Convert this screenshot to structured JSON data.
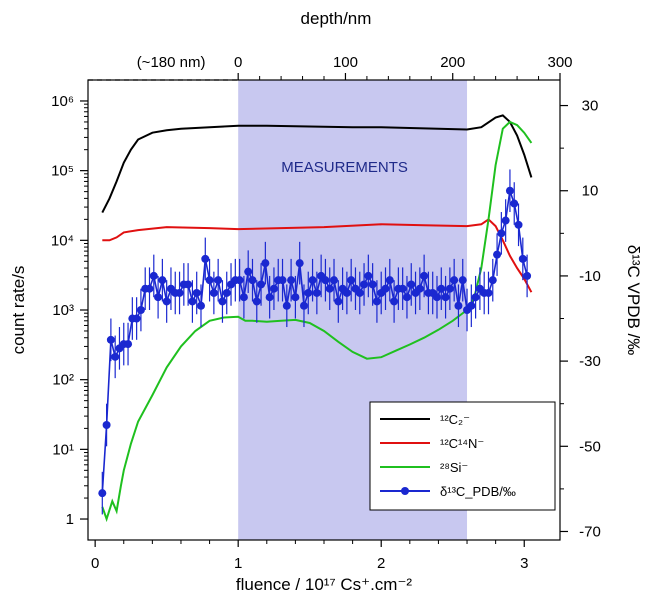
{
  "chart_data": {
    "type": "line",
    "title": "",
    "top_axis": {
      "label": "depth/nm",
      "ticks": [
        0,
        100,
        200,
        300
      ],
      "annotation": "(~180 nm)"
    },
    "xlabel": "fluence / 10¹⁷ Cs⁺.cm⁻²",
    "xlim": [
      -0.05,
      3.25
    ],
    "x_ticks": [
      0,
      1,
      2,
      3
    ],
    "ylabel_left": "count rate/s",
    "y_left_scale": "log",
    "y_left_range": [
      0.5,
      2000000
    ],
    "y_left_ticks": [
      {
        "value": 1,
        "label": "1"
      },
      {
        "value": 10,
        "label": "10¹"
      },
      {
        "value": 100,
        "label": "10²"
      },
      {
        "value": 1000,
        "label": "10³"
      },
      {
        "value": 10000,
        "label": "10⁴"
      },
      {
        "value": 100000,
        "label": "10⁵"
      },
      {
        "value": 1000000,
        "label": "10⁶"
      }
    ],
    "ylabel_right": "δ¹³C VPDB /‰",
    "y_right_range": [
      -72,
      36
    ],
    "y_right_ticks": [
      30,
      10,
      -10,
      -30,
      -50,
      -70
    ],
    "shaded_region": {
      "x_start": 1.0,
      "x_end": 2.6,
      "label": "MEASUREMENTS",
      "color": "#c8c8f0"
    },
    "legend_position": "bottom-right",
    "series": [
      {
        "name": "¹²C₂⁻",
        "axis": "left",
        "color": "#000000",
        "style": "line",
        "x": [
          0.05,
          0.1,
          0.15,
          0.2,
          0.25,
          0.3,
          0.4,
          0.5,
          0.6,
          0.8,
          1.0,
          1.2,
          1.5,
          1.8,
          2.0,
          2.2,
          2.4,
          2.6,
          2.7,
          2.8,
          2.85,
          2.9,
          2.95,
          3.0,
          3.05
        ],
        "y": [
          25000,
          40000,
          70000,
          130000,
          200000,
          280000,
          350000,
          380000,
          400000,
          420000,
          440000,
          440000,
          430000,
          420000,
          420000,
          410000,
          400000,
          390000,
          420000,
          580000,
          620000,
          500000,
          320000,
          170000,
          80000
        ]
      },
      {
        "name": "¹²C¹⁴N⁻",
        "axis": "left",
        "color": "#e01010",
        "style": "line",
        "x": [
          0.05,
          0.1,
          0.15,
          0.2,
          0.3,
          0.5,
          0.8,
          1.0,
          1.3,
          1.6,
          2.0,
          2.3,
          2.6,
          2.7,
          2.75,
          2.8,
          2.85,
          2.9,
          2.95,
          3.0,
          3.05
        ],
        "y": [
          10000,
          10000,
          11000,
          13000,
          14000,
          15500,
          15000,
          14500,
          15000,
          15500,
          17000,
          16500,
          16000,
          17000,
          20000,
          16000,
          10000,
          6000,
          4000,
          2800,
          1800
        ]
      },
      {
        "name": "²⁸Si⁻",
        "axis": "left",
        "color": "#1fc01f",
        "style": "line",
        "x": [
          0.05,
          0.08,
          0.12,
          0.15,
          0.18,
          0.2,
          0.25,
          0.3,
          0.4,
          0.5,
          0.6,
          0.7,
          0.8,
          0.9,
          1.0,
          1.05,
          1.1,
          1.2,
          1.3,
          1.4,
          1.5,
          1.6,
          1.7,
          1.8,
          1.9,
          2.0,
          2.1,
          2.2,
          2.3,
          2.4,
          2.5,
          2.6,
          2.65,
          2.7,
          2.75,
          2.8,
          2.85,
          2.9,
          2.95,
          3.0,
          3.05
        ],
        "y": [
          1.5,
          1.0,
          1.8,
          1.3,
          3,
          5,
          12,
          25,
          60,
          150,
          300,
          500,
          700,
          780,
          800,
          700,
          700,
          680,
          700,
          720,
          650,
          500,
          350,
          250,
          200,
          210,
          260,
          320,
          400,
          520,
          700,
          1000,
          1500,
          4000,
          20000,
          120000,
          400000,
          500000,
          450000,
          350000,
          250000
        ]
      },
      {
        "name": "δ¹³C_PDB/‰",
        "axis": "right",
        "color": "#1a28d0",
        "style": "markers+line+errorbars",
        "x": [
          0.05,
          0.08,
          0.11,
          0.14,
          0.17,
          0.2,
          0.23,
          0.26,
          0.29,
          0.32,
          0.35,
          0.38,
          0.41,
          0.44,
          0.47,
          0.5,
          0.53,
          0.56,
          0.59,
          0.62,
          0.65,
          0.68,
          0.71,
          0.74,
          0.77,
          0.8,
          0.83,
          0.86,
          0.89,
          0.92,
          0.95,
          0.98,
          1.01,
          1.04,
          1.07,
          1.1,
          1.13,
          1.16,
          1.19,
          1.22,
          1.25,
          1.28,
          1.31,
          1.34,
          1.37,
          1.4,
          1.43,
          1.46,
          1.49,
          1.52,
          1.55,
          1.58,
          1.61,
          1.64,
          1.67,
          1.7,
          1.73,
          1.76,
          1.79,
          1.82,
          1.85,
          1.88,
          1.91,
          1.94,
          1.97,
          2.0,
          2.03,
          2.06,
          2.09,
          2.12,
          2.15,
          2.18,
          2.21,
          2.24,
          2.27,
          2.3,
          2.33,
          2.36,
          2.39,
          2.42,
          2.45,
          2.48,
          2.51,
          2.54,
          2.57,
          2.6,
          2.63,
          2.66,
          2.69,
          2.72,
          2.75,
          2.78,
          2.81,
          2.84,
          2.87,
          2.9,
          2.93,
          2.96,
          2.99,
          3.02
        ],
        "y": [
          -61,
          -45,
          -25,
          -29,
          -27,
          -26,
          -26,
          -20,
          -20,
          -18,
          -13,
          -13,
          -10,
          -15,
          -11,
          -16,
          -13,
          -14,
          -14,
          -12,
          -12,
          -16,
          -14,
          -17,
          -6,
          -11,
          -14,
          -11,
          -16,
          -14,
          -12,
          -11,
          -11,
          -15,
          -9,
          -11,
          -16,
          -12,
          -7,
          -15,
          -13,
          -11,
          -11,
          -17,
          -11,
          -15,
          -7,
          -17,
          -14,
          -11,
          -14,
          -10,
          -11,
          -13,
          -11,
          -16,
          -13,
          -14,
          -11,
          -13,
          -14,
          -12,
          -10,
          -12,
          -16,
          -14,
          -13,
          -11,
          -16,
          -13,
          -13,
          -15,
          -12,
          -14,
          -13,
          -10,
          -14,
          -14,
          -15,
          -13,
          -15,
          -13,
          -11,
          -17,
          -11,
          -18,
          -17,
          -15,
          -13,
          -14,
          -14,
          -11,
          -5,
          0,
          3,
          10,
          7,
          2,
          -6,
          -10
        ],
        "error": 5
      }
    ]
  }
}
